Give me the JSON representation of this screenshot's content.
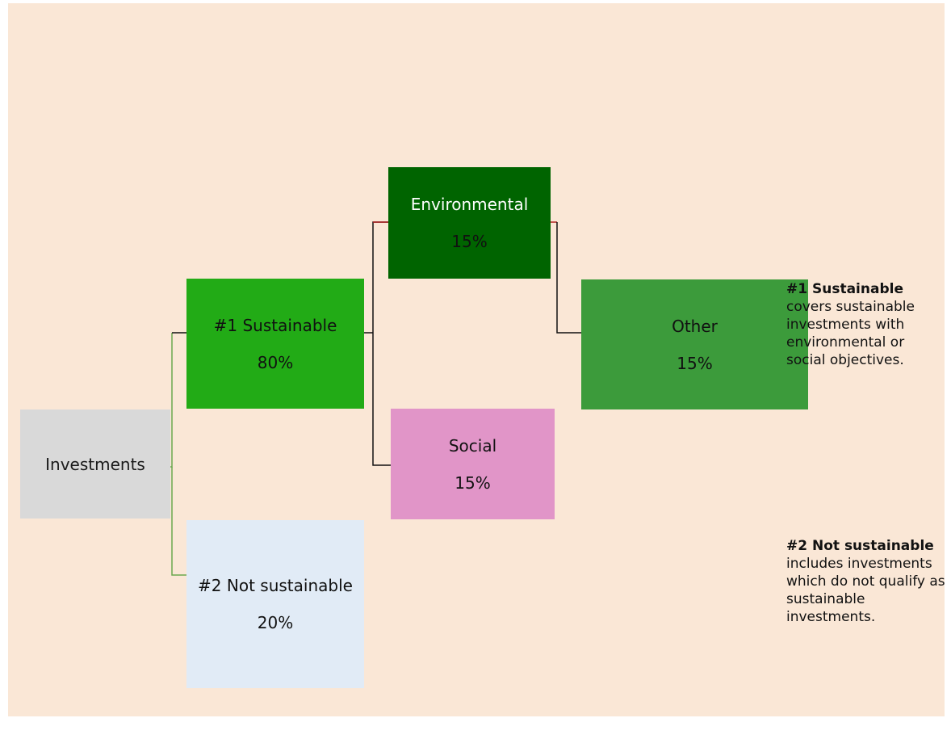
{
  "nodes": {
    "investments": {
      "label": "Investments"
    },
    "sustainable": {
      "label": "#1 Sustainable",
      "value": "80%"
    },
    "not_sustainable": {
      "label": "#2 Not sustainable",
      "value": "20%"
    },
    "environmental": {
      "label": "Environmental",
      "value": "15%"
    },
    "social": {
      "label": "Social",
      "value": "15%"
    },
    "other": {
      "label": "Other",
      "value": "15%"
    }
  },
  "notes": {
    "sustainable": {
      "title": "#1 Sustainable",
      "text": "covers sustainable investments with environmental or social objectives."
    },
    "not_sustainable": {
      "title": "#2 Not sustainable",
      "text": "includes investments which do not qualify as sustainable investments."
    }
  },
  "colors": {
    "background": "#fae7d6",
    "investments": "#d9d9d9",
    "sustainable": "#22ab16",
    "not_sustainable": "#e1ebf6",
    "environmental": "#006400",
    "social": "#e195c8",
    "other": "#3c9b3b",
    "connector_green": "#6aa84f",
    "connector_dark": "#111111",
    "connector_red": "#b22222"
  }
}
